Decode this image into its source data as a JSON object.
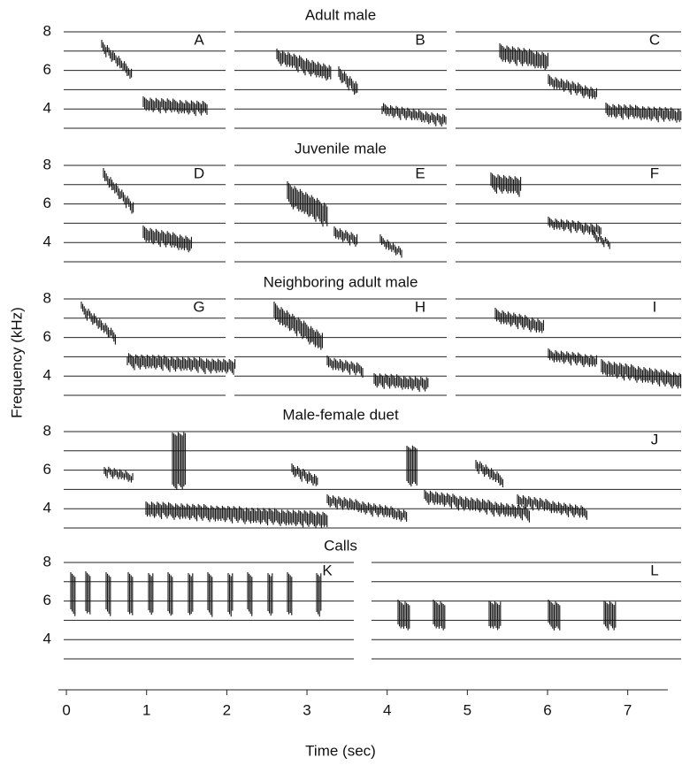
{
  "chart_data": {
    "type": "spectrogram",
    "y_label": "Frequency (kHz)",
    "x_label": "Time (sec)",
    "ylim": [
      3,
      8
    ],
    "yticks": [
      4,
      6,
      8
    ],
    "minor_yticks": [
      3,
      5,
      7
    ],
    "xlim": [
      -0.1,
      7.5
    ],
    "xticks": [
      0,
      1,
      2,
      3,
      4,
      5,
      6,
      7
    ],
    "rows": [
      {
        "title": "Adult male",
        "panels": [
          "A",
          "B",
          "C"
        ]
      },
      {
        "title": "Juvenile male",
        "panels": [
          "D",
          "E",
          "F"
        ]
      },
      {
        "title": "Neighboring adult male",
        "panels": [
          "G",
          "H",
          "I"
        ]
      },
      {
        "title": "Male-female duet",
        "panels": [
          "J"
        ]
      },
      {
        "title": "Calls",
        "panels": [
          "K",
          "L"
        ]
      }
    ]
  }
}
